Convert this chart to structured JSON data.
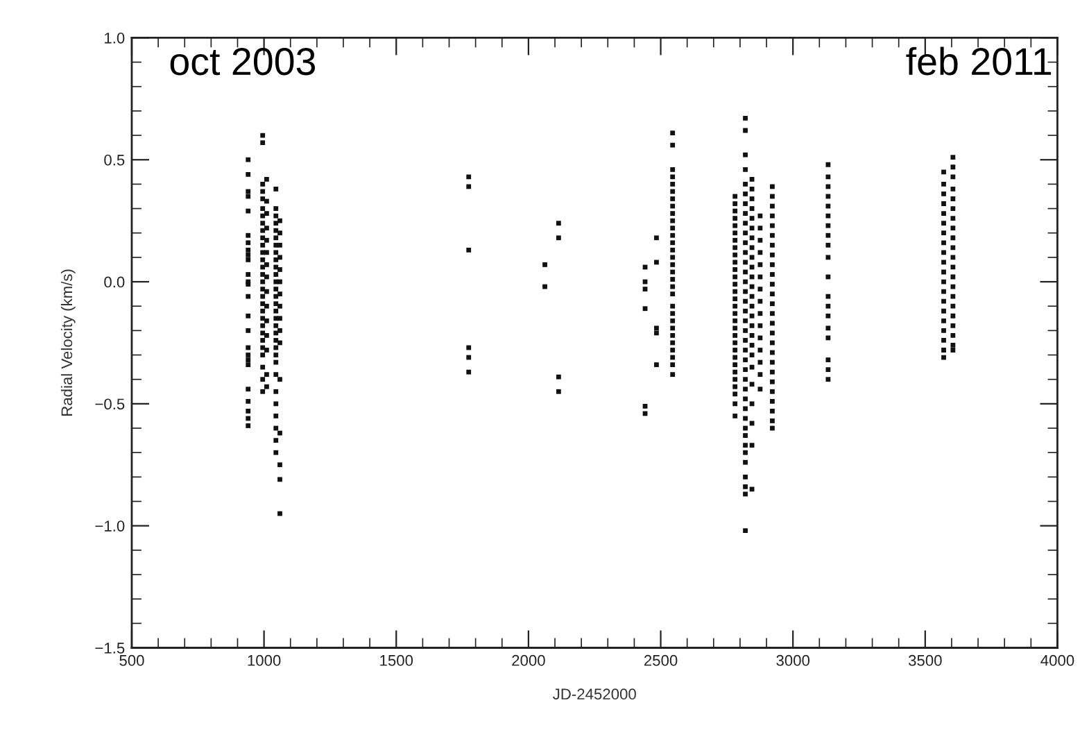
{
  "chart_data": {
    "type": "scatter",
    "xlabel": "JD-2452000",
    "ylabel": "Radial Velocity (km/s)",
    "annotations": [
      "oct 2003",
      "feb 2011"
    ],
    "xlim": [
      500,
      4000
    ],
    "xticks": [
      500,
      1000,
      1500,
      2000,
      2500,
      3000,
      3500,
      4000
    ],
    "ylim": [
      -1.5,
      1.0
    ],
    "yticks": [
      {
        "value": -1.5,
        "label": "−1.5"
      },
      {
        "value": -1.0,
        "label": "−1.0"
      },
      {
        "value": -0.5,
        "label": "−0.5"
      },
      {
        "value": 0.0,
        "label": "0.0"
      },
      {
        "value": 0.5,
        "label": "0.5"
      },
      {
        "value": 1.0,
        "label": "1.0"
      }
    ],
    "grid": false,
    "marker": "square",
    "series": [
      {
        "color": "#111111",
        "x": [
          940,
          940,
          940,
          940,
          940,
          940,
          940,
          940,
          940,
          940,
          940,
          940,
          940,
          940,
          940,
          940,
          940,
          940,
          940,
          940,
          940,
          940,
          940,
          940,
          940
        ],
        "values": [
          0.5,
          0.44,
          0.37,
          0.35,
          0.29,
          0.19,
          0.16,
          0.13,
          0.11,
          0.09,
          0.03,
          0.0,
          -0.01,
          -0.06,
          -0.14,
          -0.2,
          -0.27,
          -0.3,
          -0.32,
          -0.34,
          -0.44,
          -0.49,
          -0.53,
          -0.56,
          -0.59
        ]
      },
      {
        "color": "#111111",
        "x": [
          995,
          995,
          995,
          995,
          995,
          995,
          995,
          995,
          995,
          995,
          995,
          995,
          995,
          995,
          995,
          995,
          995,
          995,
          995,
          995,
          995,
          995,
          995,
          995,
          995,
          995,
          995,
          995,
          995
        ],
        "values": [
          0.6,
          0.57,
          0.4,
          0.37,
          0.34,
          0.3,
          0.27,
          0.24,
          0.21,
          0.18,
          0.15,
          0.12,
          0.09,
          0.06,
          0.03,
          0.0,
          -0.03,
          -0.06,
          -0.09,
          -0.12,
          -0.15,
          -0.18,
          -0.21,
          -0.24,
          -0.27,
          -0.3,
          -0.35,
          -0.4,
          -0.45
        ]
      },
      {
        "color": "#111111",
        "x": [
          1010,
          1010,
          1010,
          1010,
          1010,
          1010,
          1010,
          1010,
          1010,
          1010,
          1010,
          1010,
          1010,
          1010,
          1010
        ],
        "values": [
          0.42,
          0.33,
          0.28,
          0.22,
          0.17,
          0.12,
          0.07,
          0.02,
          -0.04,
          -0.1,
          -0.16,
          -0.22,
          -0.28,
          -0.38,
          -0.43
        ]
      },
      {
        "color": "#111111",
        "x": [
          1045,
          1045,
          1045,
          1045,
          1045,
          1045,
          1045,
          1045,
          1045,
          1045,
          1045,
          1045,
          1045,
          1045,
          1045,
          1045,
          1045,
          1045,
          1045,
          1045,
          1045,
          1045,
          1045,
          1045,
          1045,
          1045,
          1045,
          1045,
          1045,
          1045
        ],
        "values": [
          0.38,
          0.3,
          0.27,
          0.24,
          0.21,
          0.18,
          0.15,
          0.12,
          0.09,
          0.06,
          0.03,
          0.0,
          -0.03,
          -0.06,
          -0.09,
          -0.12,
          -0.15,
          -0.18,
          -0.21,
          -0.24,
          -0.27,
          -0.3,
          -0.33,
          -0.38,
          -0.45,
          -0.5,
          -0.55,
          -0.6,
          -0.65,
          -0.7
        ]
      },
      {
        "color": "#111111",
        "x": [
          1060,
          1060,
          1060,
          1060,
          1060,
          1060,
          1060,
          1060,
          1060,
          1060,
          1060,
          1060,
          1060,
          1060,
          1060,
          1060
        ],
        "values": [
          0.25,
          0.2,
          0.15,
          0.1,
          0.05,
          0.0,
          -0.05,
          -0.1,
          -0.15,
          -0.2,
          -0.25,
          -0.4,
          -0.62,
          -0.75,
          -0.81,
          -0.95
        ]
      },
      {
        "color": "#111111",
        "x": [
          1774,
          1774,
          1774,
          1774,
          1774,
          1774
        ],
        "values": [
          0.43,
          0.39,
          0.13,
          -0.27,
          -0.31,
          -0.37
        ]
      },
      {
        "color": "#111111",
        "x": [
          2062,
          2062
        ],
        "values": [
          0.07,
          -0.02
        ]
      },
      {
        "color": "#111111",
        "x": [
          2114,
          2114,
          2114,
          2114
        ],
        "values": [
          0.24,
          0.18,
          -0.39,
          -0.45
        ]
      },
      {
        "color": "#111111",
        "x": [
          2441,
          2441,
          2441,
          2441,
          2441,
          2441
        ],
        "values": [
          0.06,
          0.0,
          -0.03,
          -0.11,
          -0.51,
          -0.54
        ]
      },
      {
        "color": "#111111",
        "x": [
          2484,
          2484,
          2484,
          2484,
          2484
        ],
        "values": [
          0.18,
          0.08,
          -0.19,
          -0.21,
          -0.34
        ]
      },
      {
        "color": "#111111",
        "x": [
          2545,
          2545,
          2545,
          2545,
          2545,
          2545,
          2545,
          2545,
          2545,
          2545,
          2545,
          2545,
          2545,
          2545,
          2545,
          2545,
          2545,
          2545,
          2545,
          2545,
          2545,
          2545,
          2545,
          2545,
          2545,
          2545,
          2545,
          2545,
          2545,
          2545
        ],
        "values": [
          0.61,
          0.56,
          0.46,
          0.43,
          0.4,
          0.37,
          0.34,
          0.31,
          0.28,
          0.25,
          0.22,
          0.19,
          0.16,
          0.13,
          0.1,
          0.07,
          0.04,
          0.01,
          -0.02,
          -0.05,
          -0.1,
          -0.13,
          -0.16,
          -0.19,
          -0.22,
          -0.25,
          -0.28,
          -0.31,
          -0.34,
          -0.38
        ]
      },
      {
        "color": "#111111",
        "x": [
          2781,
          2781,
          2781,
          2781,
          2781,
          2781,
          2781,
          2781,
          2781,
          2781,
          2781,
          2781,
          2781,
          2781,
          2781,
          2781,
          2781,
          2781,
          2781,
          2781,
          2781,
          2781,
          2781,
          2781,
          2781,
          2781,
          2781,
          2781,
          2781,
          2781
        ],
        "values": [
          0.35,
          0.32,
          0.29,
          0.26,
          0.23,
          0.2,
          0.17,
          0.14,
          0.11,
          0.08,
          0.05,
          0.02,
          -0.01,
          -0.04,
          -0.07,
          -0.1,
          -0.13,
          -0.16,
          -0.19,
          -0.22,
          -0.25,
          -0.28,
          -0.31,
          -0.34,
          -0.37,
          -0.4,
          -0.43,
          -0.46,
          -0.5,
          -0.55
        ]
      },
      {
        "color": "#111111",
        "x": [
          2820,
          2820,
          2820,
          2820,
          2820,
          2820,
          2820,
          2820,
          2820,
          2820,
          2820,
          2820,
          2820,
          2820,
          2820,
          2820,
          2820,
          2820,
          2820,
          2820,
          2820,
          2820,
          2820,
          2820,
          2820,
          2820,
          2820,
          2820,
          2820,
          2820,
          2820,
          2820,
          2820,
          2820,
          2820,
          2820,
          2820,
          2820
        ],
        "values": [
          0.67,
          0.62,
          0.52,
          0.46,
          0.4,
          0.36,
          0.32,
          0.28,
          0.24,
          0.2,
          0.16,
          0.12,
          0.08,
          0.04,
          0.0,
          -0.04,
          -0.08,
          -0.12,
          -0.16,
          -0.2,
          -0.24,
          -0.28,
          -0.32,
          -0.36,
          -0.4,
          -0.44,
          -0.48,
          -0.52,
          -0.56,
          -0.6,
          -0.63,
          -0.67,
          -0.7,
          -0.74,
          -0.8,
          -0.84,
          -0.87,
          -1.02
        ]
      },
      {
        "color": "#111111",
        "x": [
          2845,
          2845,
          2845,
          2845,
          2845,
          2845,
          2845,
          2845,
          2845,
          2845,
          2845,
          2845,
          2845,
          2845,
          2845,
          2845,
          2845,
          2845,
          2845,
          2845,
          2845,
          2845,
          2845,
          2845,
          2845
        ],
        "values": [
          0.42,
          0.38,
          0.34,
          0.3,
          0.26,
          0.22,
          0.18,
          0.14,
          0.1,
          0.06,
          0.02,
          -0.02,
          -0.06,
          -0.1,
          -0.14,
          -0.18,
          -0.22,
          -0.26,
          -0.3,
          -0.35,
          -0.42,
          -0.5,
          -0.58,
          -0.67,
          -0.85
        ]
      },
      {
        "color": "#111111",
        "x": [
          2876,
          2876,
          2876,
          2876,
          2876,
          2876,
          2876,
          2876,
          2876,
          2876,
          2876,
          2876,
          2876,
          2876,
          2876
        ],
        "values": [
          0.27,
          0.22,
          0.17,
          0.12,
          0.07,
          0.02,
          -0.03,
          -0.08,
          -0.13,
          -0.18,
          -0.23,
          -0.28,
          -0.33,
          -0.38,
          -0.44
        ]
      },
      {
        "color": "#111111",
        "x": [
          2922,
          2922,
          2922,
          2922,
          2922,
          2922,
          2922,
          2922,
          2922,
          2922,
          2922,
          2922,
          2922,
          2922,
          2922,
          2922,
          2922,
          2922,
          2922,
          2922,
          2922,
          2922,
          2922,
          2922,
          2922,
          2922
        ],
        "values": [
          0.39,
          0.35,
          0.31,
          0.27,
          0.23,
          0.19,
          0.15,
          0.11,
          0.07,
          0.03,
          -0.01,
          -0.05,
          -0.09,
          -0.13,
          -0.17,
          -0.21,
          -0.25,
          -0.29,
          -0.33,
          -0.37,
          -0.41,
          -0.45,
          -0.49,
          -0.53,
          -0.57,
          -0.6
        ]
      },
      {
        "color": "#111111",
        "x": [
          3133,
          3133,
          3133,
          3133,
          3133,
          3133,
          3133,
          3133,
          3133,
          3133,
          3133,
          3133,
          3133,
          3133,
          3133,
          3133,
          3133,
          3133,
          3133
        ],
        "values": [
          0.48,
          0.43,
          0.39,
          0.35,
          0.31,
          0.27,
          0.23,
          0.19,
          0.15,
          0.1,
          0.02,
          -0.06,
          -0.1,
          -0.14,
          -0.19,
          -0.23,
          -0.32,
          -0.36,
          -0.4
        ]
      },
      {
        "color": "#111111",
        "x": [
          3570,
          3570,
          3570,
          3570,
          3570,
          3570,
          3570,
          3570,
          3570,
          3570,
          3570,
          3570,
          3570,
          3570,
          3570,
          3570,
          3570,
          3570,
          3570,
          3570
        ],
        "values": [
          0.45,
          0.4,
          0.36,
          0.32,
          0.28,
          0.24,
          0.2,
          0.16,
          0.12,
          0.08,
          0.04,
          0.0,
          -0.04,
          -0.08,
          -0.12,
          -0.16,
          -0.2,
          -0.24,
          -0.28,
          -0.31
        ]
      },
      {
        "color": "#111111",
        "x": [
          3605,
          3605,
          3605,
          3605,
          3605,
          3605,
          3605,
          3605,
          3605,
          3605,
          3605,
          3605,
          3605,
          3605,
          3605,
          3605,
          3605,
          3605,
          3605,
          3605,
          3605
        ],
        "values": [
          0.51,
          0.47,
          0.43,
          0.38,
          0.34,
          0.3,
          0.26,
          0.22,
          0.18,
          0.14,
          0.1,
          0.06,
          0.02,
          -0.02,
          -0.06,
          -0.1,
          -0.14,
          -0.18,
          -0.22,
          -0.26,
          -0.28
        ]
      }
    ]
  }
}
